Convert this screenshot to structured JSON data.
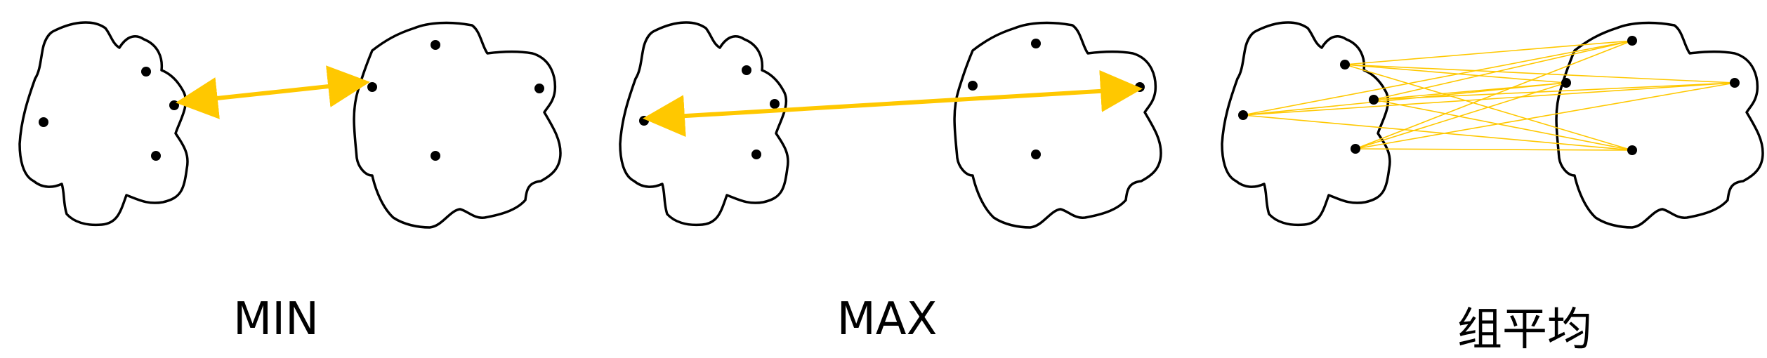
{
  "panels": [
    {
      "id": "min",
      "label": "MIN"
    },
    {
      "id": "max",
      "label": "MAX"
    },
    {
      "id": "avg",
      "label": "组平均"
    }
  ],
  "colors": {
    "link": "#FFC800",
    "outline": "#000000",
    "point": "#000000"
  }
}
